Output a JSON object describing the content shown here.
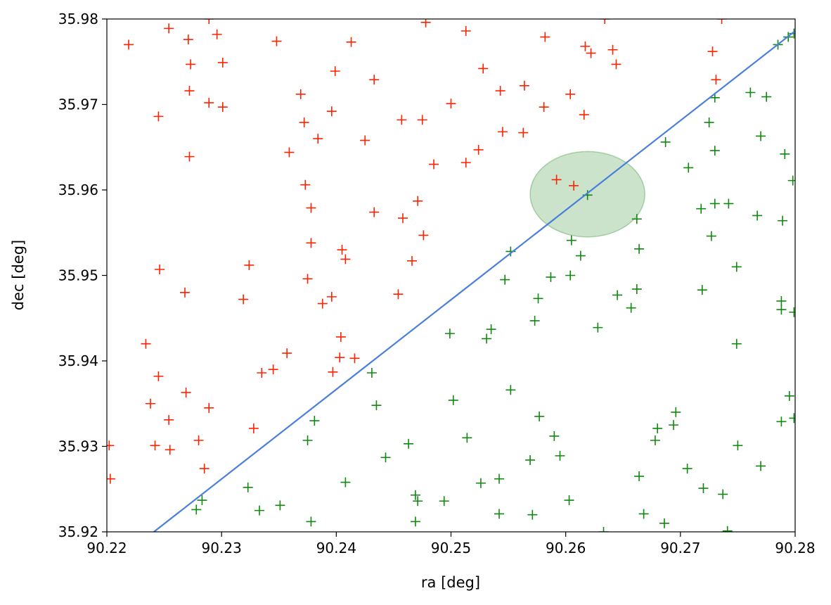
{
  "chart_data": {
    "type": "scatter",
    "xlabel": "ra [deg]",
    "ylabel": "dec [deg]",
    "xlim": [
      90.22,
      90.28
    ],
    "ylim": [
      35.92,
      35.98
    ],
    "xticks": [
      "90.22",
      "90.23",
      "90.24",
      "90.25",
      "90.26",
      "90.27",
      "90.28"
    ],
    "xtick_values": [
      90.22,
      90.23,
      90.24,
      90.25,
      90.26,
      90.27,
      90.28
    ],
    "yticks": [
      "35.92",
      "35.93",
      "35.94",
      "35.95",
      "35.96",
      "35.97",
      "35.98"
    ],
    "ytick_values": [
      35.92,
      35.93,
      35.94,
      35.95,
      35.96,
      35.97,
      35.98
    ],
    "grid": false,
    "colors": {
      "red_points": "#ff2200",
      "green_points": "#118811",
      "line": "#4a7fdc",
      "circle": "#2e8b2e"
    },
    "marker": "plus",
    "series": [
      {
        "color": "red",
        "points": [
          [
            90.2219,
            35.977
          ],
          [
            90.2254,
            35.9789
          ],
          [
            90.2271,
            35.9776
          ],
          [
            90.2289,
            35.98
          ],
          [
            90.2296,
            35.9782
          ],
          [
            90.2273,
            35.9747
          ],
          [
            90.2301,
            35.9749
          ],
          [
            90.2348,
            35.9774
          ],
          [
            90.2413,
            35.9773
          ],
          [
            90.2478,
            35.9796
          ],
          [
            90.2513,
            35.9786
          ],
          [
            90.2582,
            35.9779
          ],
          [
            90.2617,
            35.9768
          ],
          [
            90.2622,
            35.976
          ],
          [
            90.2641,
            35.9764
          ],
          [
            90.2644,
            35.9747
          ],
          [
            90.2634,
            35.98
          ],
          [
            90.2728,
            35.9762
          ],
          [
            90.2736,
            35.98
          ],
          [
            90.2731,
            35.9729
          ],
          [
            90.2272,
            35.9716
          ],
          [
            90.2245,
            35.9686
          ],
          [
            90.2289,
            35.9702
          ],
          [
            90.2301,
            35.9697
          ],
          [
            90.2399,
            35.9739
          ],
          [
            90.2433,
            35.9729
          ],
          [
            90.2369,
            35.9712
          ],
          [
            90.2396,
            35.9692
          ],
          [
            90.25,
            35.9701
          ],
          [
            90.2528,
            35.9742
          ],
          [
            90.2543,
            35.9716
          ],
          [
            90.2564,
            35.9722
          ],
          [
            90.2581,
            35.9697
          ],
          [
            90.2604,
            35.9712
          ],
          [
            90.2616,
            35.9688
          ],
          [
            90.2372,
            35.9679
          ],
          [
            90.2384,
            35.966
          ],
          [
            90.2425,
            35.9658
          ],
          [
            90.2457,
            35.9682
          ],
          [
            90.2475,
            35.9682
          ],
          [
            90.2545,
            35.9668
          ],
          [
            90.2563,
            35.9667
          ],
          [
            90.2524,
            35.9647
          ],
          [
            90.2513,
            35.9632
          ],
          [
            90.2485,
            35.963
          ],
          [
            90.2359,
            35.9644
          ],
          [
            90.2272,
            35.9639
          ],
          [
            90.2373,
            35.9606
          ],
          [
            90.2378,
            35.9579
          ],
          [
            90.2378,
            35.9538
          ],
          [
            90.2433,
            35.9574
          ],
          [
            90.2471,
            35.9587
          ],
          [
            90.2458,
            35.9567
          ],
          [
            90.2476,
            35.9547
          ],
          [
            90.2405,
            35.953
          ],
          [
            90.2408,
            35.9519
          ],
          [
            90.2466,
            35.9517
          ],
          [
            90.2375,
            35.9496
          ],
          [
            90.2246,
            35.9507
          ],
          [
            90.2324,
            35.9512
          ],
          [
            90.2268,
            35.948
          ],
          [
            90.2319,
            35.9472
          ],
          [
            90.2454,
            35.9478
          ],
          [
            90.2396,
            35.9475
          ],
          [
            90.2388,
            35.9467
          ],
          [
            90.2245,
            35.9382
          ],
          [
            90.2234,
            35.942
          ],
          [
            90.2404,
            35.9428
          ],
          [
            90.2403,
            35.9404
          ],
          [
            90.2416,
            35.9403
          ],
          [
            90.2397,
            35.9387
          ],
          [
            90.2357,
            35.9409
          ],
          [
            90.2345,
            35.939
          ],
          [
            90.2335,
            35.9386
          ],
          [
            90.2238,
            35.935
          ],
          [
            90.2254,
            35.9331
          ],
          [
            90.2269,
            35.9363
          ],
          [
            90.2289,
            35.9345
          ],
          [
            90.2242,
            35.9301
          ],
          [
            90.2255,
            35.9296
          ],
          [
            90.228,
            35.9307
          ],
          [
            90.2328,
            35.9321
          ],
          [
            90.2285,
            35.9274
          ],
          [
            90.2203,
            35.9262
          ],
          [
            90.2202,
            35.9301
          ],
          [
            90.2592,
            35.9612
          ],
          [
            90.2607,
            35.9605
          ]
        ]
      },
      {
        "color": "green",
        "points": [
          [
            90.2799,
            35.9783
          ],
          [
            90.2785,
            35.977
          ],
          [
            90.2794,
            35.9779
          ],
          [
            90.2761,
            35.9714
          ],
          [
            90.2775,
            35.9709
          ],
          [
            90.273,
            35.9708
          ],
          [
            90.2725,
            35.9679
          ],
          [
            90.273,
            35.9646
          ],
          [
            90.2687,
            35.9656
          ],
          [
            90.277,
            35.9663
          ],
          [
            90.2707,
            35.9626
          ],
          [
            90.2798,
            35.9611
          ],
          [
            90.2791,
            35.9642
          ],
          [
            90.273,
            35.9584
          ],
          [
            90.2742,
            35.9584
          ],
          [
            90.2718,
            35.9578
          ],
          [
            90.2767,
            35.957
          ],
          [
            90.2789,
            35.9564
          ],
          [
            90.2662,
            35.9566
          ],
          [
            90.2727,
            35.9546
          ],
          [
            90.2619,
            35.9594
          ],
          [
            90.2605,
            35.9541
          ],
          [
            90.2613,
            35.9523
          ],
          [
            90.2664,
            35.9531
          ],
          [
            90.2552,
            35.9528
          ],
          [
            90.2547,
            35.9495
          ],
          [
            90.2587,
            35.9498
          ],
          [
            90.2604,
            35.95
          ],
          [
            90.2576,
            35.9473
          ],
          [
            90.2573,
            35.9447
          ],
          [
            90.2645,
            35.9477
          ],
          [
            90.2662,
            35.9484
          ],
          [
            90.2657,
            35.9462
          ],
          [
            90.2719,
            35.9483
          ],
          [
            90.2749,
            35.951
          ],
          [
            90.2788,
            35.947
          ],
          [
            90.2788,
            35.946
          ],
          [
            90.2799,
            35.9457
          ],
          [
            90.2749,
            35.942
          ],
          [
            90.2628,
            35.9439
          ],
          [
            90.2535,
            35.9437
          ],
          [
            90.2531,
            35.9426
          ],
          [
            90.2499,
            35.9432
          ],
          [
            90.2431,
            35.9386
          ],
          [
            90.2552,
            35.9366
          ],
          [
            90.2502,
            35.9354
          ],
          [
            90.2435,
            35.9348
          ],
          [
            90.2795,
            35.9359
          ],
          [
            90.2799,
            35.9333
          ],
          [
            90.2696,
            35.934
          ],
          [
            90.2694,
            35.9325
          ],
          [
            90.2577,
            35.9335
          ],
          [
            90.268,
            35.9321
          ],
          [
            90.2678,
            35.9307
          ],
          [
            90.2381,
            35.933
          ],
          [
            90.2375,
            35.9307
          ],
          [
            90.2514,
            35.931
          ],
          [
            90.259,
            35.9312
          ],
          [
            90.2595,
            35.9289
          ],
          [
            90.275,
            35.9301
          ],
          [
            90.2788,
            35.9329
          ],
          [
            90.277,
            35.9277
          ],
          [
            90.2569,
            35.9284
          ],
          [
            90.2463,
            35.9303
          ],
          [
            90.2443,
            35.9287
          ],
          [
            90.2408,
            35.9258
          ],
          [
            90.2323,
            35.9252
          ],
          [
            90.2333,
            35.9225
          ],
          [
            90.2351,
            35.9231
          ],
          [
            90.2283,
            35.9237
          ],
          [
            90.2278,
            35.9226
          ],
          [
            90.2378,
            35.9212
          ],
          [
            90.2469,
            35.9243
          ],
          [
            90.2471,
            35.9236
          ],
          [
            90.2494,
            35.9236
          ],
          [
            90.2526,
            35.9257
          ],
          [
            90.2542,
            35.9262
          ],
          [
            90.2542,
            35.9221
          ],
          [
            90.2603,
            35.9237
          ],
          [
            90.2571,
            35.922
          ],
          [
            90.2469,
            35.9212
          ],
          [
            90.2668,
            35.9221
          ],
          [
            90.2664,
            35.9265
          ],
          [
            90.2686,
            35.921
          ],
          [
            90.2706,
            35.9274
          ],
          [
            90.272,
            35.9251
          ],
          [
            90.2737,
            35.9244
          ],
          [
            90.2741,
            35.9201
          ],
          [
            90.2633,
            35.92
          ]
        ]
      }
    ],
    "line": {
      "points": [
        [
          90.2241,
          35.92
        ],
        [
          90.28,
          35.9786
        ]
      ]
    },
    "circle": {
      "center": [
        90.2619,
        35.9595
      ],
      "radius_deg": 0.005
    }
  }
}
